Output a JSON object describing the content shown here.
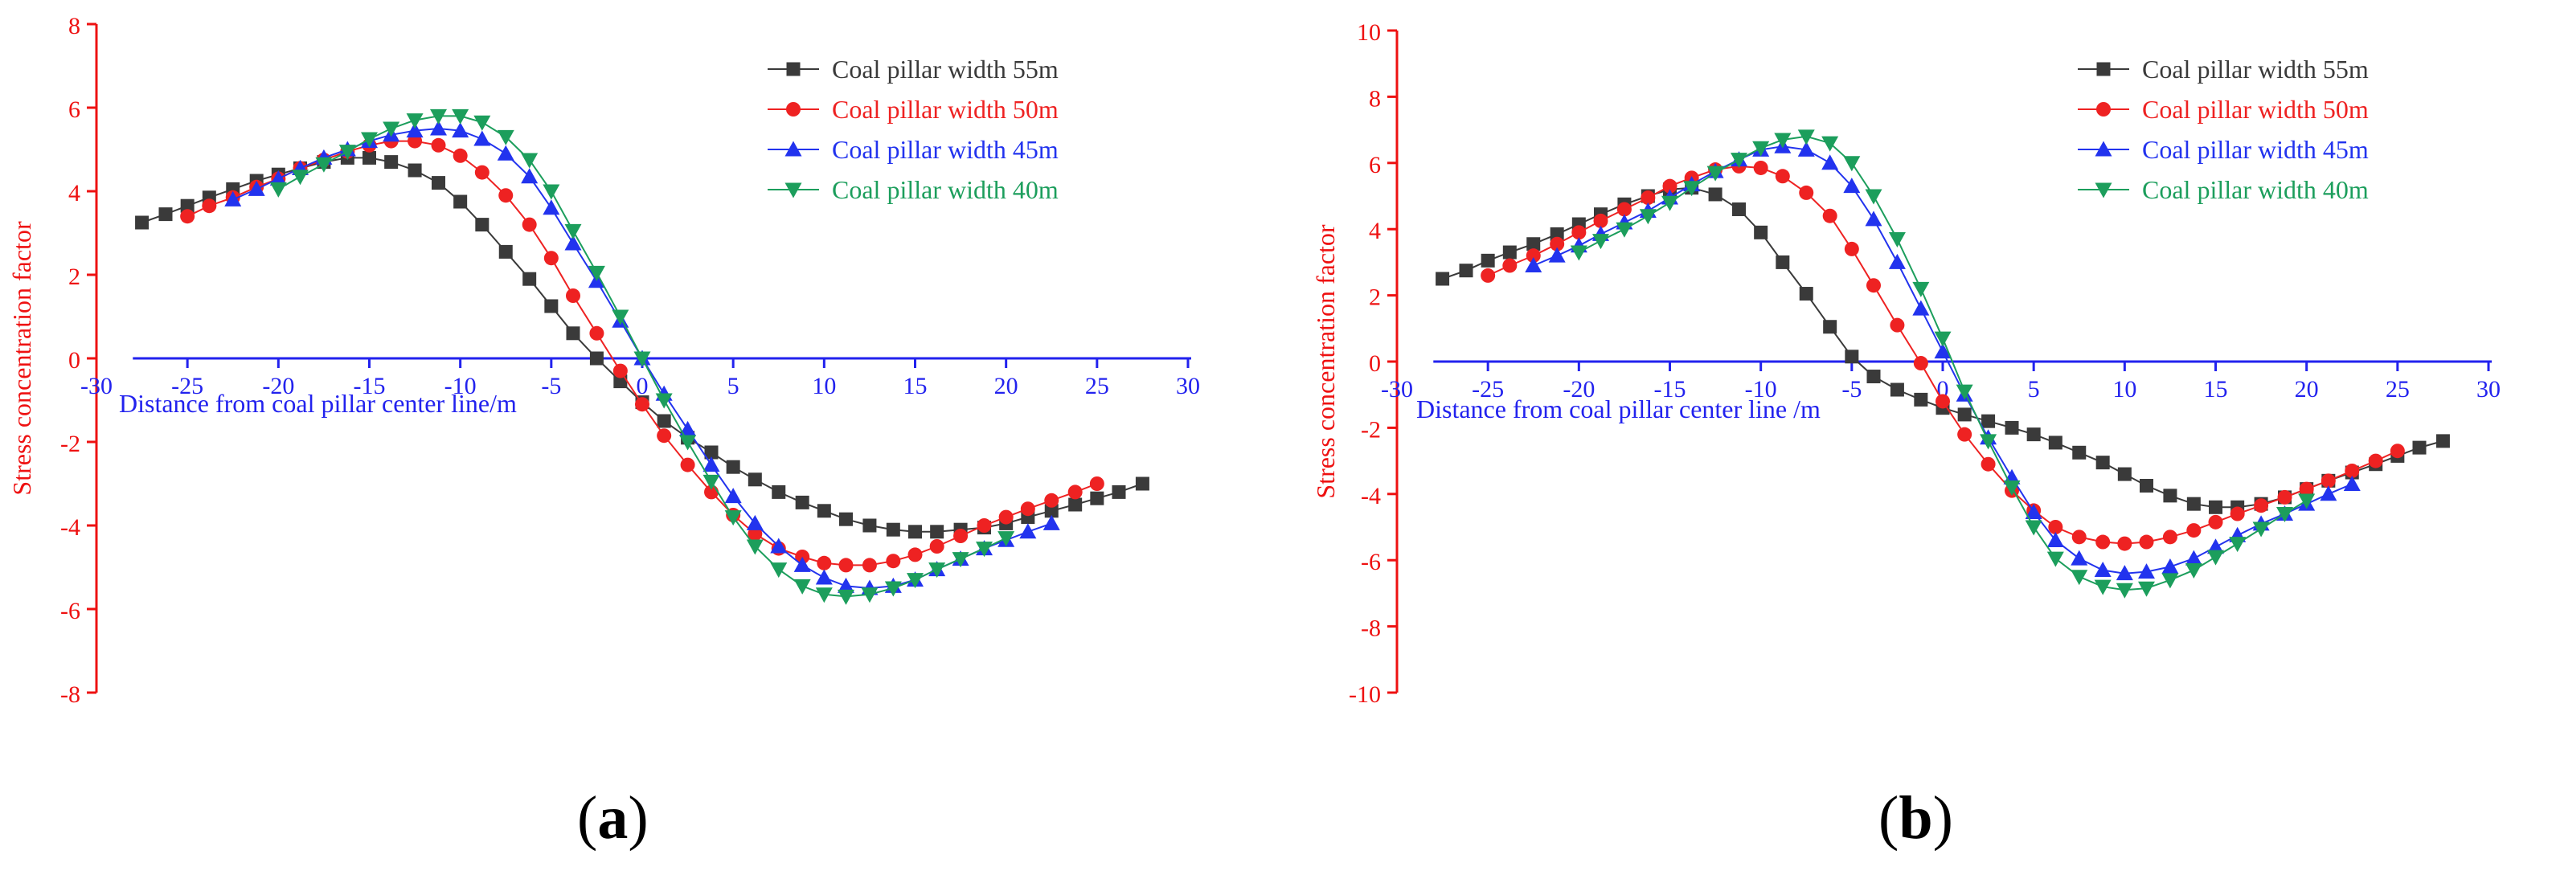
{
  "figure": {
    "panel_labels": [
      "(a)",
      "(b)"
    ],
    "colors": {
      "axis_x": "#2222ee",
      "axis_y": "#ee1111",
      "series": [
        "#3a3a3a",
        "#ee2222",
        "#2233ee",
        "#1c9e5c"
      ]
    }
  },
  "chart_data": [
    {
      "panel": "a",
      "type": "line",
      "xlabel": "Distance from coal pillar center line/m",
      "ylabel": "Stress concentration factor",
      "xlim": [
        -30,
        30
      ],
      "ylim": [
        -8,
        8
      ],
      "xticks": [
        -30,
        -25,
        -20,
        -15,
        -10,
        -5,
        0,
        5,
        10,
        15,
        20,
        25,
        30
      ],
      "yticks": [
        -8,
        -6,
        -4,
        -2,
        0,
        2,
        4,
        6,
        8
      ],
      "legend_position": "top-right",
      "series": [
        {
          "name": "Coal pillar width 55m",
          "marker": "square",
          "x": [
            -27.5,
            -26.2,
            -25.0,
            -23.8,
            -22.5,
            -21.2,
            -20.0,
            -18.8,
            -17.5,
            -16.2,
            -15.0,
            -13.8,
            -12.5,
            -11.2,
            -10.0,
            -8.8,
            -7.5,
            -6.2,
            -5.0,
            -3.8,
            -2.5,
            -1.2,
            0.0,
            1.2,
            2.5,
            3.8,
            5.0,
            6.2,
            7.5,
            8.8,
            10.0,
            11.2,
            12.5,
            13.8,
            15.0,
            16.2,
            17.5,
            18.8,
            20.0,
            21.2,
            22.5,
            23.8,
            25.0,
            26.2,
            27.5
          ],
          "y": [
            3.25,
            3.45,
            3.65,
            3.85,
            4.05,
            4.25,
            4.4,
            4.55,
            4.7,
            4.8,
            4.8,
            4.7,
            4.5,
            4.2,
            3.75,
            3.2,
            2.55,
            1.9,
            1.25,
            0.6,
            0.0,
            -0.55,
            -1.05,
            -1.5,
            -1.9,
            -2.25,
            -2.6,
            -2.9,
            -3.2,
            -3.45,
            -3.65,
            -3.85,
            -4.0,
            -4.1,
            -4.15,
            -4.15,
            -4.1,
            -4.05,
            -3.95,
            -3.8,
            -3.65,
            -3.5,
            -3.35,
            -3.2,
            -3.0
          ]
        },
        {
          "name": "Coal pillar width 50m",
          "marker": "circle",
          "x": [
            -25.0,
            -23.8,
            -22.5,
            -21.2,
            -20.0,
            -18.8,
            -17.5,
            -16.2,
            -15.0,
            -13.8,
            -12.5,
            -11.2,
            -10.0,
            -8.8,
            -7.5,
            -6.2,
            -5.0,
            -3.8,
            -2.5,
            -1.2,
            0.0,
            1.2,
            2.5,
            3.8,
            5.0,
            6.2,
            7.5,
            8.8,
            10.0,
            11.2,
            12.5,
            13.8,
            15.0,
            16.2,
            17.5,
            18.8,
            20.0,
            21.2,
            22.5,
            23.8,
            25.0
          ],
          "y": [
            3.4,
            3.65,
            3.85,
            4.1,
            4.3,
            4.55,
            4.75,
            4.95,
            5.1,
            5.2,
            5.2,
            5.1,
            4.85,
            4.45,
            3.9,
            3.2,
            2.4,
            1.5,
            0.6,
            -0.3,
            -1.1,
            -1.85,
            -2.55,
            -3.2,
            -3.75,
            -4.2,
            -4.55,
            -4.75,
            -4.9,
            -4.95,
            -4.95,
            -4.85,
            -4.7,
            -4.5,
            -4.25,
            -4.0,
            -3.8,
            -3.6,
            -3.4,
            -3.2,
            -3.0
          ]
        },
        {
          "name": "Coal pillar width 45m",
          "marker": "triangle-up",
          "x": [
            -22.5,
            -21.2,
            -20.0,
            -18.8,
            -17.5,
            -16.2,
            -15.0,
            -13.8,
            -12.5,
            -11.2,
            -10.0,
            -8.8,
            -7.5,
            -6.2,
            -5.0,
            -3.8,
            -2.5,
            -1.2,
            0.0,
            1.2,
            2.5,
            3.8,
            5.0,
            6.2,
            7.5,
            8.8,
            10.0,
            11.2,
            12.5,
            13.8,
            15.0,
            16.2,
            17.5,
            18.8,
            20.0,
            21.2,
            22.5
          ],
          "y": [
            3.8,
            4.05,
            4.3,
            4.55,
            4.8,
            5.0,
            5.2,
            5.35,
            5.45,
            5.5,
            5.45,
            5.25,
            4.9,
            4.35,
            3.6,
            2.75,
            1.85,
            0.9,
            0.0,
            -0.85,
            -1.7,
            -2.55,
            -3.3,
            -3.95,
            -4.5,
            -4.95,
            -5.25,
            -5.45,
            -5.5,
            -5.45,
            -5.3,
            -5.05,
            -4.8,
            -4.55,
            -4.35,
            -4.15,
            -3.95
          ]
        },
        {
          "name": "Coal pillar width 40m",
          "marker": "triangle-down",
          "x": [
            -20.0,
            -18.8,
            -17.5,
            -16.2,
            -15.0,
            -13.8,
            -12.5,
            -11.2,
            -10.0,
            -8.8,
            -7.5,
            -6.2,
            -5.0,
            -3.8,
            -2.5,
            -1.2,
            0.0,
            1.2,
            2.5,
            3.8,
            5.0,
            6.2,
            7.5,
            8.8,
            10.0,
            11.2,
            12.5,
            13.8,
            15.0,
            16.2,
            17.5,
            18.8,
            20.0
          ],
          "y": [
            4.05,
            4.35,
            4.65,
            4.95,
            5.25,
            5.5,
            5.7,
            5.8,
            5.8,
            5.65,
            5.3,
            4.75,
            4.0,
            3.05,
            2.05,
            1.0,
            0.0,
            -1.0,
            -2.0,
            -2.95,
            -3.8,
            -4.5,
            -5.05,
            -5.45,
            -5.65,
            -5.7,
            -5.65,
            -5.5,
            -5.3,
            -5.05,
            -4.8,
            -4.55,
            -4.3
          ]
        }
      ]
    },
    {
      "panel": "b",
      "type": "line",
      "xlabel": "Distance from coal pillar center line /m",
      "ylabel": "Stress concentration factor",
      "xlim": [
        -30,
        30
      ],
      "ylim": [
        -10,
        10
      ],
      "xticks": [
        -30,
        -25,
        -20,
        -15,
        -10,
        -5,
        0,
        5,
        10,
        15,
        20,
        25,
        30
      ],
      "yticks": [
        -10,
        -8,
        -6,
        -4,
        -2,
        0,
        2,
        4,
        6,
        8,
        10
      ],
      "legend_position": "top-right",
      "series": [
        {
          "name": "Coal pillar width 55m",
          "marker": "square",
          "x": [
            -27.5,
            -26.2,
            -25.0,
            -23.8,
            -22.5,
            -21.2,
            -20.0,
            -18.8,
            -17.5,
            -16.2,
            -15.0,
            -13.8,
            -12.5,
            -11.2,
            -10.0,
            -8.8,
            -7.5,
            -6.2,
            -5.0,
            -3.8,
            -2.5,
            -1.2,
            0.0,
            1.2,
            2.5,
            3.8,
            5.0,
            6.2,
            7.5,
            8.8,
            10.0,
            11.2,
            12.5,
            13.8,
            15.0,
            16.2,
            17.5,
            18.8,
            20.0,
            21.2,
            22.5,
            23.8,
            25.0,
            26.2,
            27.5
          ],
          "y": [
            2.5,
            2.75,
            3.05,
            3.3,
            3.55,
            3.85,
            4.15,
            4.45,
            4.75,
            5.0,
            5.2,
            5.25,
            5.05,
            4.6,
            3.9,
            3.0,
            2.05,
            1.05,
            0.15,
            -0.45,
            -0.85,
            -1.15,
            -1.4,
            -1.6,
            -1.8,
            -2.0,
            -2.2,
            -2.45,
            -2.75,
            -3.05,
            -3.4,
            -3.75,
            -4.05,
            -4.3,
            -4.4,
            -4.4,
            -4.3,
            -4.1,
            -3.85,
            -3.6,
            -3.35,
            -3.1,
            -2.85,
            -2.6,
            -2.4
          ]
        },
        {
          "name": "Coal pillar width 50m",
          "marker": "circle",
          "x": [
            -25.0,
            -23.8,
            -22.5,
            -21.2,
            -20.0,
            -18.8,
            -17.5,
            -16.2,
            -15.0,
            -13.8,
            -12.5,
            -11.2,
            -10.0,
            -8.8,
            -7.5,
            -6.2,
            -5.0,
            -3.8,
            -2.5,
            -1.2,
            0.0,
            1.2,
            2.5,
            3.8,
            5.0,
            6.2,
            7.5,
            8.8,
            10.0,
            11.2,
            12.5,
            13.8,
            15.0,
            16.2,
            17.5,
            18.8,
            20.0,
            21.2,
            22.5,
            23.8,
            25.0
          ],
          "y": [
            2.6,
            2.9,
            3.2,
            3.55,
            3.9,
            4.25,
            4.6,
            4.95,
            5.3,
            5.55,
            5.8,
            5.9,
            5.85,
            5.6,
            5.1,
            4.4,
            3.4,
            2.3,
            1.1,
            -0.05,
            -1.2,
            -2.2,
            -3.1,
            -3.9,
            -4.5,
            -5.0,
            -5.3,
            -5.45,
            -5.5,
            -5.45,
            -5.3,
            -5.1,
            -4.85,
            -4.6,
            -4.35,
            -4.1,
            -3.85,
            -3.6,
            -3.3,
            -3.0,
            -2.7
          ]
        },
        {
          "name": "Coal pillar width 45m",
          "marker": "triangle-up",
          "x": [
            -22.5,
            -21.2,
            -20.0,
            -18.8,
            -17.5,
            -16.2,
            -15.0,
            -13.8,
            -12.5,
            -11.2,
            -10.0,
            -8.8,
            -7.5,
            -6.2,
            -5.0,
            -3.8,
            -2.5,
            -1.2,
            0.0,
            1.2,
            2.5,
            3.8,
            5.0,
            6.2,
            7.5,
            8.8,
            10.0,
            11.2,
            12.5,
            13.8,
            15.0,
            16.2,
            17.5,
            18.8,
            20.0,
            21.2,
            22.5
          ],
          "y": [
            2.9,
            3.2,
            3.5,
            3.85,
            4.2,
            4.55,
            4.95,
            5.35,
            5.75,
            6.1,
            6.4,
            6.5,
            6.4,
            6.0,
            5.3,
            4.3,
            3.0,
            1.6,
            0.3,
            -1.0,
            -2.3,
            -3.5,
            -4.55,
            -5.4,
            -5.95,
            -6.3,
            -6.4,
            -6.35,
            -6.2,
            -5.95,
            -5.6,
            -5.25,
            -4.9,
            -4.6,
            -4.3,
            -4.0,
            -3.7
          ]
        },
        {
          "name": "Coal pillar width 40m",
          "marker": "triangle-down",
          "x": [
            -20.0,
            -18.8,
            -17.5,
            -16.2,
            -15.0,
            -13.8,
            -12.5,
            -11.2,
            -10.0,
            -8.8,
            -7.5,
            -6.2,
            -5.0,
            -3.8,
            -2.5,
            -1.2,
            0.0,
            1.2,
            2.5,
            3.8,
            5.0,
            6.2,
            7.5,
            8.8,
            10.0,
            11.2,
            12.5,
            13.8,
            15.0,
            16.2,
            17.5,
            18.8,
            20.0
          ],
          "y": [
            3.3,
            3.65,
            4.0,
            4.4,
            4.8,
            5.25,
            5.7,
            6.1,
            6.45,
            6.7,
            6.8,
            6.6,
            6.0,
            5.0,
            3.7,
            2.2,
            0.7,
            -0.9,
            -2.4,
            -3.8,
            -5.0,
            -5.95,
            -6.5,
            -6.8,
            -6.9,
            -6.85,
            -6.6,
            -6.3,
            -5.9,
            -5.5,
            -5.05,
            -4.6,
            -4.2
          ]
        }
      ]
    }
  ]
}
